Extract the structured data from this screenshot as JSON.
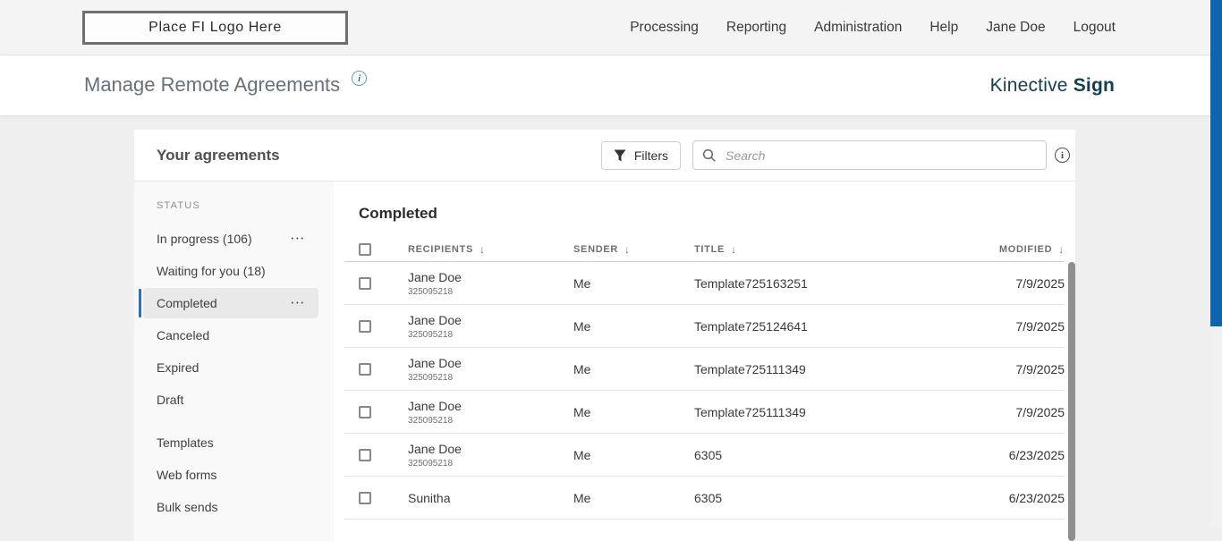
{
  "topbar": {
    "logo_text": "Place FI Logo Here",
    "nav": [
      "Processing",
      "Reporting",
      "Administration",
      "Help",
      "Jane Doe",
      "Logout"
    ]
  },
  "header": {
    "title": "Manage Remote Agreements",
    "brand_name": "Kinective",
    "brand_product": "Sign"
  },
  "panel": {
    "title": "Your agreements",
    "filters_label": "Filters",
    "search_placeholder": "Search"
  },
  "sidebar": {
    "section_label": "STATUS",
    "items": [
      {
        "label": "In progress (106)",
        "menu": true,
        "selected": false
      },
      {
        "label": "Waiting for you (18)",
        "menu": false,
        "selected": false
      },
      {
        "label": "Completed",
        "menu": true,
        "selected": true
      },
      {
        "label": "Canceled",
        "menu": false,
        "selected": false
      },
      {
        "label": "Expired",
        "menu": false,
        "selected": false
      },
      {
        "label": "Draft",
        "menu": false,
        "selected": false
      }
    ],
    "secondary_items": [
      {
        "label": "Templates"
      },
      {
        "label": "Web forms"
      },
      {
        "label": "Bulk sends"
      }
    ]
  },
  "table": {
    "section_title": "Completed",
    "columns": [
      "RECIPIENTS",
      "SENDER",
      "TITLE",
      "MODIFIED"
    ],
    "rows": [
      {
        "recipient": "Jane Doe",
        "recipient_sub": "325095218",
        "sender": "Me",
        "title": "Template725163251",
        "modified": "7/9/2025"
      },
      {
        "recipient": "Jane Doe",
        "recipient_sub": "325095218",
        "sender": "Me",
        "title": "Template725124641",
        "modified": "7/9/2025"
      },
      {
        "recipient": "Jane Doe",
        "recipient_sub": "325095218",
        "sender": "Me",
        "title": "Template725111349",
        "modified": "7/9/2025"
      },
      {
        "recipient": "Jane Doe",
        "recipient_sub": "325095218",
        "sender": "Me",
        "title": "Template725111349",
        "modified": "7/9/2025"
      },
      {
        "recipient": "Jane Doe",
        "recipient_sub": "325095218",
        "sender": "Me",
        "title": "6305",
        "modified": "6/23/2025"
      },
      {
        "recipient": "Sunitha",
        "recipient_sub": "",
        "sender": "Me",
        "title": "6305",
        "modified": "6/23/2025"
      }
    ]
  },
  "icons": {
    "info_glyph": "i",
    "sort_arrow": "↓",
    "ellipsis": "•••"
  },
  "colors": {
    "accent_blue": "#1473e6",
    "scrollbar_blue": "#0d65af",
    "brand_teal": "#12404f"
  }
}
